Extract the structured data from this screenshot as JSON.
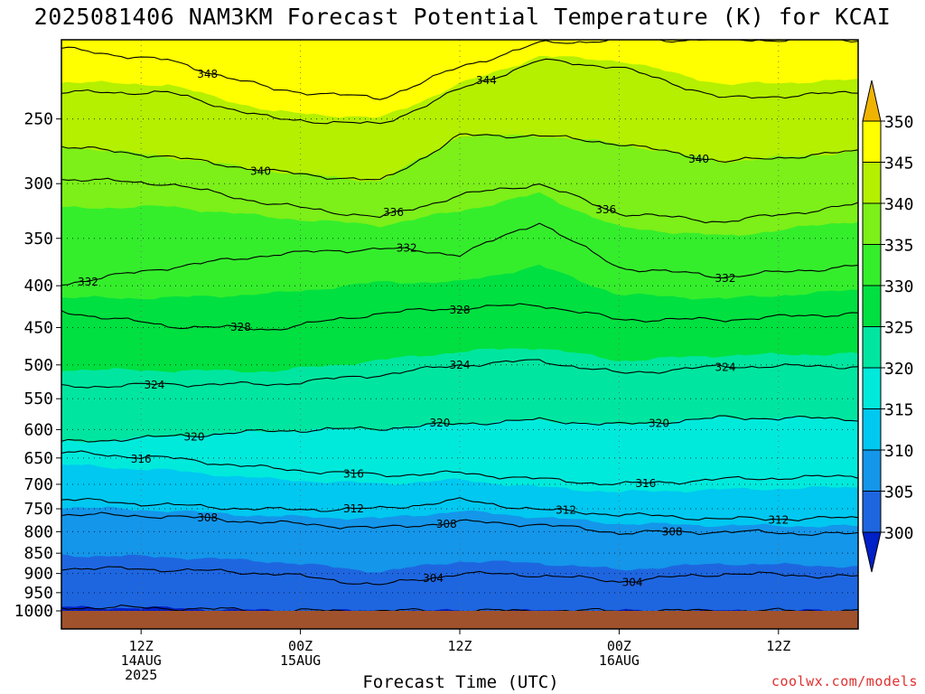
{
  "title": "2025081406 NAM3KM Forecast Potential Temperature (K) for KCAI",
  "credit": "coolwx.com/models",
  "chart_data": {
    "type": "filled-contour",
    "title": "2025081406 NAM3KM Forecast Potential Temperature (K) for KCAI",
    "xlabel": "Forecast Time (UTC)",
    "ylabel": "",
    "y_ticks": [
      250,
      300,
      350,
      400,
      450,
      500,
      550,
      600,
      650,
      700,
      750,
      800,
      850,
      900,
      950,
      1000
    ],
    "y_range_hPa": [
      200,
      1000
    ],
    "y_scale": "log-pressure",
    "x_range_forecast_hours": [
      0,
      60
    ],
    "x_ticks": [
      {
        "hour": 6,
        "lines": [
          "12Z",
          "14AUG",
          "2025"
        ]
      },
      {
        "hour": 18,
        "lines": [
          "00Z",
          "15AUG"
        ]
      },
      {
        "hour": 30,
        "lines": [
          "12Z",
          ""
        ]
      },
      {
        "hour": 42,
        "lines": [
          "00Z",
          "16AUG"
        ]
      },
      {
        "hour": 54,
        "lines": [
          "12Z",
          ""
        ]
      }
    ],
    "grid": true,
    "colorbar": {
      "placement": "right",
      "levels": [
        300,
        305,
        310,
        315,
        320,
        325,
        330,
        335,
        340,
        345,
        350
      ],
      "labels": [
        "300",
        "305",
        "310",
        "315",
        "320",
        "325",
        "330",
        "335",
        "340",
        "345",
        "350"
      ],
      "colors": [
        "#0020c8",
        "#1e66e0",
        "#1496ea",
        "#00c8f0",
        "#00eadc",
        "#00e6a0",
        "#00e040",
        "#34ee2c",
        "#7cf018",
        "#b4f000",
        "#ffff00",
        "#f0b400"
      ]
    },
    "contour_interval_K": 4,
    "contour_labels": [
      {
        "value": 348,
        "hour": 11
      },
      {
        "value": 344,
        "hour": 32
      },
      {
        "value": 340,
        "hour": 15
      },
      {
        "value": 340,
        "hour": 48
      },
      {
        "value": 336,
        "hour": 25
      },
      {
        "value": 336,
        "hour": 41
      },
      {
        "value": 332,
        "hour": 2
      },
      {
        "value": 332,
        "hour": 26
      },
      {
        "value": 332,
        "hour": 50
      },
      {
        "value": 328,
        "hour": 13.5
      },
      {
        "value": 328,
        "hour": 30
      },
      {
        "value": 324,
        "hour": 7
      },
      {
        "value": 324,
        "hour": 30
      },
      {
        "value": 324,
        "hour": 50
      },
      {
        "value": 320,
        "hour": 10
      },
      {
        "value": 320,
        "hour": 28.5
      },
      {
        "value": 320,
        "hour": 45
      },
      {
        "value": 316,
        "hour": 6
      },
      {
        "value": 316,
        "hour": 22
      },
      {
        "value": 316,
        "hour": 44
      },
      {
        "value": 312,
        "hour": 22
      },
      {
        "value": 312,
        "hour": 38
      },
      {
        "value": 312,
        "hour": 54
      },
      {
        "value": 308,
        "hour": 11
      },
      {
        "value": 308,
        "hour": 29
      },
      {
        "value": 308,
        "hour": 46
      },
      {
        "value": 304,
        "hour": 28
      },
      {
        "value": 304,
        "hour": 43
      }
    ],
    "isentropes": [
      {
        "theta": 348,
        "p": [
          [
            0,
            205
          ],
          [
            8,
            212
          ],
          [
            16,
            230
          ],
          [
            24,
            236
          ],
          [
            30,
            216
          ],
          [
            36,
            202
          ],
          [
            42,
            200
          ],
          [
            50,
            200
          ],
          [
            60,
            200
          ]
        ]
      },
      {
        "theta": 344,
        "p": [
          [
            0,
            232
          ],
          [
            8,
            232
          ],
          [
            16,
            250
          ],
          [
            24,
            254
          ],
          [
            30,
            230
          ],
          [
            36,
            212
          ],
          [
            42,
            216
          ],
          [
            50,
            236
          ],
          [
            60,
            232
          ]
        ]
      },
      {
        "theta": 340,
        "p": [
          [
            0,
            270
          ],
          [
            8,
            278
          ],
          [
            16,
            290
          ],
          [
            24,
            298
          ],
          [
            30,
            262
          ],
          [
            36,
            262
          ],
          [
            42,
            268
          ],
          [
            50,
            282
          ],
          [
            60,
            274
          ]
        ]
      },
      {
        "theta": 336,
        "p": [
          [
            0,
            296
          ],
          [
            8,
            300
          ],
          [
            16,
            318
          ],
          [
            24,
            330
          ],
          [
            30,
            310
          ],
          [
            36,
            300
          ],
          [
            42,
            326
          ],
          [
            50,
            334
          ],
          [
            60,
            318
          ]
        ]
      },
      {
        "theta": 332,
        "p": [
          [
            0,
            398
          ],
          [
            8,
            380
          ],
          [
            16,
            366
          ],
          [
            24,
            360
          ],
          [
            30,
            366
          ],
          [
            36,
            334
          ],
          [
            42,
            380
          ],
          [
            50,
            390
          ],
          [
            60,
            378
          ]
        ]
      },
      {
        "theta": 328,
        "p": [
          [
            0,
            430
          ],
          [
            8,
            448
          ],
          [
            16,
            452
          ],
          [
            24,
            432
          ],
          [
            30,
            426
          ],
          [
            36,
            422
          ],
          [
            42,
            440
          ],
          [
            50,
            440
          ],
          [
            60,
            432
          ]
        ]
      },
      {
        "theta": 324,
        "p": [
          [
            0,
            532
          ],
          [
            8,
            528
          ],
          [
            16,
            528
          ],
          [
            24,
            514
          ],
          [
            30,
            500
          ],
          [
            36,
            494
          ],
          [
            42,
            512
          ],
          [
            50,
            502
          ],
          [
            60,
            502
          ]
        ]
      },
      {
        "theta": 320,
        "p": [
          [
            0,
            622
          ],
          [
            8,
            612
          ],
          [
            16,
            602
          ],
          [
            24,
            598
          ],
          [
            30,
            590
          ],
          [
            36,
            584
          ],
          [
            42,
            592
          ],
          [
            50,
            580
          ],
          [
            60,
            582
          ]
        ]
      },
      {
        "theta": 316,
        "p": [
          [
            0,
            640
          ],
          [
            8,
            650
          ],
          [
            16,
            670
          ],
          [
            24,
            682
          ],
          [
            30,
            678
          ],
          [
            36,
            690
          ],
          [
            42,
            700
          ],
          [
            50,
            690
          ],
          [
            60,
            684
          ]
        ]
      },
      {
        "theta": 312,
        "p": [
          [
            0,
            730
          ],
          [
            8,
            742
          ],
          [
            16,
            752
          ],
          [
            24,
            750
          ],
          [
            30,
            732
          ],
          [
            36,
            752
          ],
          [
            42,
            762
          ],
          [
            50,
            772
          ],
          [
            60,
            770
          ]
        ]
      },
      {
        "theta": 308,
        "p": [
          [
            0,
            762
          ],
          [
            8,
            766
          ],
          [
            16,
            780
          ],
          [
            24,
            792
          ],
          [
            30,
            778
          ],
          [
            36,
            784
          ],
          [
            42,
            802
          ],
          [
            50,
            800
          ],
          [
            60,
            806
          ]
        ]
      },
      {
        "theta": 304,
        "p": [
          [
            0,
            886
          ],
          [
            8,
            890
          ],
          [
            16,
            900
          ],
          [
            24,
            930
          ],
          [
            30,
            900
          ],
          [
            36,
            904
          ],
          [
            42,
            920
          ],
          [
            50,
            900
          ],
          [
            60,
            908
          ]
        ]
      },
      {
        "theta": 300,
        "p": [
          [
            0,
            990
          ],
          [
            8,
            992
          ],
          [
            16,
            1000
          ],
          [
            24,
            1000
          ],
          [
            30,
            1000
          ],
          [
            36,
            1000
          ],
          [
            42,
            1000
          ],
          [
            50,
            1000
          ],
          [
            60,
            1000
          ]
        ]
      }
    ]
  }
}
